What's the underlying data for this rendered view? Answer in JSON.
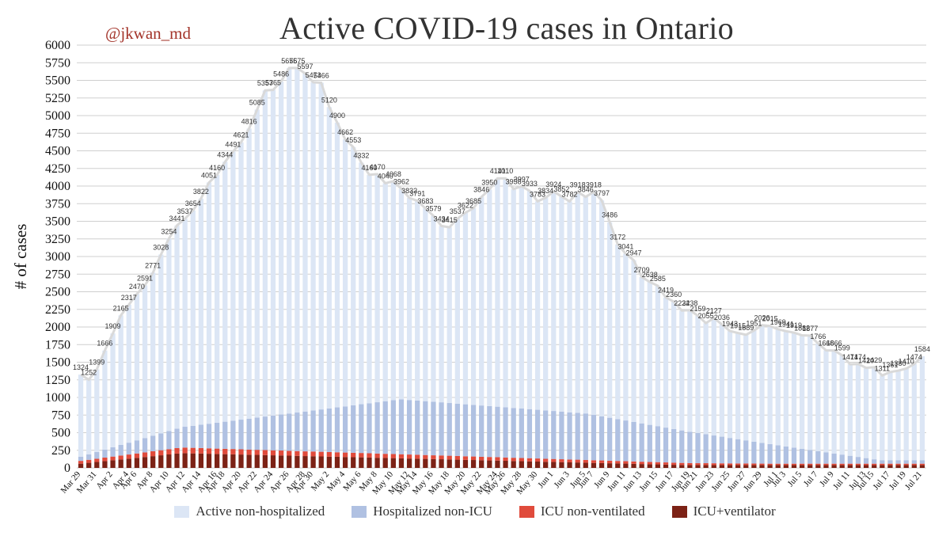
{
  "header": {
    "title": "Active COVID-19 cases in Ontario",
    "handle": "@jkwan_md"
  },
  "colors": {
    "active": "#dce6f5",
    "hospitalized": "#b0c1e2",
    "icu_nonvent": "#e04b3c",
    "icu_vent": "#7c2216",
    "grid": "#cfcfcf",
    "line": "#d9d9d9"
  },
  "chart_data": {
    "type": "bar",
    "stacked": true,
    "title": "Active COVID-19 cases in Ontario",
    "ylabel": "# of cases",
    "xlabel": "",
    "ylim": [
      0,
      6000
    ],
    "yticks": [
      0,
      250,
      500,
      750,
      1000,
      1250,
      1500,
      1750,
      2000,
      2250,
      2500,
      2750,
      3000,
      3250,
      3500,
      3750,
      4000,
      4250,
      4500,
      4750,
      5000,
      5250,
      5500,
      5750,
      6000
    ],
    "grid": true,
    "legend_position": "bottom",
    "x_tick_labels": [
      "Mar 29",
      "Mar 31",
      "Apr 2",
      "Apr 4",
      "Apr 6",
      "Apr 8",
      "Apr 10",
      "Apr 12",
      "Apr 14",
      "Apr 16",
      "Apr 18",
      "Apr 20",
      "Apr 22",
      "Apr 24",
      "Apr 26",
      "Apr 28",
      "Apr 30",
      "May 2",
      "May 4",
      "May 6",
      "May 8",
      "May 10",
      "May 12",
      "May 14",
      "May 16",
      "May 18",
      "May 20",
      "May 22",
      "May 24",
      "May 26",
      "May 28",
      "May 30",
      "Jun 1",
      "Jun 3",
      "Jun 5",
      "Jun 7",
      "Jun 9",
      "Jun 11",
      "Jun 13",
      "Jun 15",
      "Jun 17",
      "Jun 19",
      "Jun 21",
      "Jun 23",
      "Jun 25",
      "Jun 27",
      "Jun 29",
      "Jul 1",
      "Jul 3",
      "Jul 5",
      "Jul 7",
      "Jul 9",
      "Jul 11",
      "Jul 13",
      "Jul 15",
      "Jul 17",
      "Jul 19",
      "Jul 21"
    ],
    "total_labels": [
      "1324",
      "1252",
      "1399",
      "1666",
      "1909",
      "2165",
      "2317",
      "2470",
      "2591",
      "2771",
      "3028",
      "3254",
      "3441",
      "3537",
      "3654",
      "3822",
      "4051",
      "4160",
      "4344",
      "4491",
      "4621",
      "4816",
      "5085",
      "5357",
      "5365",
      "5486",
      "5675",
      "5675",
      "5597",
      "5473",
      "5466",
      "5120",
      "4900",
      "4662",
      "4553",
      "4332",
      "4160",
      "4170",
      "4040",
      "4068",
      "3962",
      "3832",
      "3791",
      "3683",
      "3579",
      "3434",
      "3415",
      "3537",
      "3622",
      "3685",
      "3846",
      "3950",
      "4110",
      "4110",
      "3958",
      "3997",
      "3933",
      "3783",
      "3834",
      "3924",
      "3852",
      "3782",
      "3918",
      "3846",
      "3918",
      "3797",
      "3486",
      "3172",
      "3041",
      "2947",
      "2709",
      "2638",
      "2585",
      "2419",
      "2360",
      "2234",
      "2238",
      "2159",
      "2055",
      "2127",
      "2036",
      "1943",
      "1915",
      "1889",
      "1951",
      "2026",
      "2015",
      "1969",
      "1941",
      "1919",
      "1882",
      "1877",
      "1766",
      "1668",
      "1666",
      "1599",
      "1471",
      "1474",
      "1420",
      "1429",
      "1311",
      "1361",
      "1380",
      "1410",
      "1474",
      "1584"
    ],
    "series": [
      {
        "name": "Active non-hospitalized",
        "values": []
      },
      {
        "name": "Hospitalized non-ICU",
        "values": []
      },
      {
        "name": "ICU non-ventilated",
        "values": []
      },
      {
        "name": "ICU+ventilator",
        "values": []
      }
    ]
  }
}
